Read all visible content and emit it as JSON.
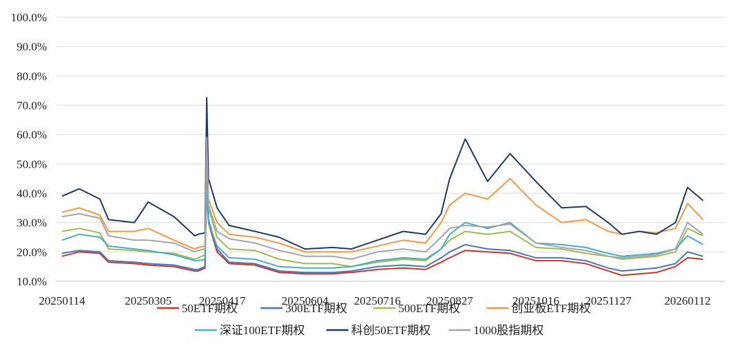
{
  "chart_data": {
    "type": "line",
    "title": "",
    "xlabel": "",
    "ylabel": "",
    "ylim": [
      0.1,
      1.0
    ],
    "y_tick_labels": [
      "10.0%",
      "20.0%",
      "30.0%",
      "40.0%",
      "50.0%",
      "60.0%",
      "70.0%",
      "80.0%",
      "90.0%",
      "100.0%"
    ],
    "x_tick_labels": [
      "20250114",
      "20250305",
      "20250417",
      "20250604",
      "20250716",
      "20250827",
      "20251016",
      "20251127",
      "20260112"
    ],
    "x_ticks": [
      "2025-01-14",
      "2025-03-05",
      "2025-04-17",
      "2025-06-04",
      "2025-07-16",
      "2025-08-27",
      "2025-10-16",
      "2025-11-27",
      "2026-01-12"
    ],
    "grid": "horizontal",
    "legend_position": "bottom",
    "series": [
      {
        "name": "50ETF期权",
        "color": "#c0392b",
        "points": [
          [
            "2025-01-14",
            0.185
          ],
          [
            "2025-01-24",
            0.2
          ],
          [
            "2025-02-05",
            0.195
          ],
          [
            "2025-02-10",
            0.165
          ],
          [
            "2025-02-25",
            0.16
          ],
          [
            "2025-03-05",
            0.155
          ],
          [
            "2025-03-20",
            0.15
          ],
          [
            "2025-04-01",
            0.135
          ],
          [
            "2025-04-03",
            0.135
          ],
          [
            "2025-04-07",
            0.145
          ],
          [
            "2025-04-08",
            0.56
          ],
          [
            "2025-04-09",
            0.3
          ],
          [
            "2025-04-14",
            0.2
          ],
          [
            "2025-04-21",
            0.16
          ],
          [
            "2025-05-06",
            0.155
          ],
          [
            "2025-05-20",
            0.13
          ],
          [
            "2025-06-04",
            0.125
          ],
          [
            "2025-06-20",
            0.125
          ],
          [
            "2025-07-01",
            0.13
          ],
          [
            "2025-07-16",
            0.14
          ],
          [
            "2025-07-31",
            0.145
          ],
          [
            "2025-08-13",
            0.14
          ],
          [
            "2025-08-22",
            0.165
          ],
          [
            "2025-08-27",
            0.18
          ],
          [
            "2025-09-05",
            0.205
          ],
          [
            "2025-09-18",
            0.2
          ],
          [
            "2025-10-01",
            0.195
          ],
          [
            "2025-10-16",
            0.17
          ],
          [
            "2025-10-31",
            0.17
          ],
          [
            "2025-11-14",
            0.16
          ],
          [
            "2025-11-27",
            0.135
          ],
          [
            "2025-12-05",
            0.12
          ],
          [
            "2025-12-15",
            0.125
          ],
          [
            "2025-12-25",
            0.13
          ],
          [
            "2026-01-05",
            0.15
          ],
          [
            "2026-01-12",
            0.18
          ],
          [
            "2026-01-21",
            0.175
          ]
        ]
      },
      {
        "name": "300ETF期权",
        "color": "#4a76b8",
        "points": [
          [
            "2025-01-14",
            0.195
          ],
          [
            "2025-01-24",
            0.205
          ],
          [
            "2025-02-05",
            0.2
          ],
          [
            "2025-02-10",
            0.17
          ],
          [
            "2025-02-25",
            0.165
          ],
          [
            "2025-03-05",
            0.16
          ],
          [
            "2025-03-20",
            0.155
          ],
          [
            "2025-04-01",
            0.14
          ],
          [
            "2025-04-03",
            0.14
          ],
          [
            "2025-04-07",
            0.15
          ],
          [
            "2025-04-08",
            0.58
          ],
          [
            "2025-04-09",
            0.31
          ],
          [
            "2025-04-14",
            0.21
          ],
          [
            "2025-04-21",
            0.165
          ],
          [
            "2025-05-06",
            0.16
          ],
          [
            "2025-05-20",
            0.135
          ],
          [
            "2025-06-04",
            0.13
          ],
          [
            "2025-06-20",
            0.13
          ],
          [
            "2025-07-01",
            0.135
          ],
          [
            "2025-07-16",
            0.15
          ],
          [
            "2025-07-31",
            0.155
          ],
          [
            "2025-08-13",
            0.15
          ],
          [
            "2025-08-22",
            0.18
          ],
          [
            "2025-08-27",
            0.2
          ],
          [
            "2025-09-05",
            0.225
          ],
          [
            "2025-09-18",
            0.21
          ],
          [
            "2025-10-01",
            0.205
          ],
          [
            "2025-10-16",
            0.18
          ],
          [
            "2025-10-31",
            0.18
          ],
          [
            "2025-11-14",
            0.17
          ],
          [
            "2025-11-27",
            0.145
          ],
          [
            "2025-12-05",
            0.135
          ],
          [
            "2025-12-15",
            0.14
          ],
          [
            "2025-12-25",
            0.145
          ],
          [
            "2026-01-05",
            0.16
          ],
          [
            "2026-01-12",
            0.2
          ],
          [
            "2026-01-21",
            0.185
          ]
        ]
      },
      {
        "name": "500ETF期权",
        "color": "#9bbb59",
        "points": [
          [
            "2025-01-14",
            0.27
          ],
          [
            "2025-01-24",
            0.28
          ],
          [
            "2025-02-05",
            0.265
          ],
          [
            "2025-02-10",
            0.21
          ],
          [
            "2025-02-25",
            0.205
          ],
          [
            "2025-03-05",
            0.2
          ],
          [
            "2025-03-20",
            0.195
          ],
          [
            "2025-04-01",
            0.175
          ],
          [
            "2025-04-03",
            0.18
          ],
          [
            "2025-04-07",
            0.19
          ],
          [
            "2025-04-08",
            0.6
          ],
          [
            "2025-04-09",
            0.35
          ],
          [
            "2025-04-14",
            0.25
          ],
          [
            "2025-04-21",
            0.21
          ],
          [
            "2025-05-06",
            0.205
          ],
          [
            "2025-05-20",
            0.175
          ],
          [
            "2025-06-04",
            0.16
          ],
          [
            "2025-06-20",
            0.16
          ],
          [
            "2025-07-01",
            0.15
          ],
          [
            "2025-07-16",
            0.165
          ],
          [
            "2025-07-31",
            0.175
          ],
          [
            "2025-08-13",
            0.17
          ],
          [
            "2025-08-22",
            0.21
          ],
          [
            "2025-08-27",
            0.24
          ],
          [
            "2025-09-05",
            0.27
          ],
          [
            "2025-09-18",
            0.26
          ],
          [
            "2025-10-01",
            0.27
          ],
          [
            "2025-10-16",
            0.215
          ],
          [
            "2025-10-31",
            0.21
          ],
          [
            "2025-11-14",
            0.195
          ],
          [
            "2025-11-27",
            0.185
          ],
          [
            "2025-12-05",
            0.175
          ],
          [
            "2025-12-15",
            0.18
          ],
          [
            "2025-12-25",
            0.185
          ],
          [
            "2026-01-05",
            0.2
          ],
          [
            "2026-01-12",
            0.28
          ],
          [
            "2026-01-21",
            0.255
          ]
        ]
      },
      {
        "name": "创业板ETF期权",
        "color": "#f79646",
        "points": [
          [
            "2025-01-14",
            0.335
          ],
          [
            "2025-01-24",
            0.35
          ],
          [
            "2025-02-05",
            0.325
          ],
          [
            "2025-02-10",
            0.27
          ],
          [
            "2025-02-25",
            0.27
          ],
          [
            "2025-03-05",
            0.28
          ],
          [
            "2025-03-20",
            0.24
          ],
          [
            "2025-04-01",
            0.21
          ],
          [
            "2025-04-03",
            0.215
          ],
          [
            "2025-04-07",
            0.22
          ],
          [
            "2025-04-08",
            0.62
          ],
          [
            "2025-04-09",
            0.38
          ],
          [
            "2025-04-14",
            0.3
          ],
          [
            "2025-04-21",
            0.26
          ],
          [
            "2025-05-06",
            0.25
          ],
          [
            "2025-05-20",
            0.23
          ],
          [
            "2025-06-04",
            0.2
          ],
          [
            "2025-06-20",
            0.2
          ],
          [
            "2025-07-01",
            0.2
          ],
          [
            "2025-07-16",
            0.22
          ],
          [
            "2025-07-31",
            0.24
          ],
          [
            "2025-08-13",
            0.23
          ],
          [
            "2025-08-22",
            0.3
          ],
          [
            "2025-08-27",
            0.36
          ],
          [
            "2025-09-05",
            0.4
          ],
          [
            "2025-09-18",
            0.38
          ],
          [
            "2025-10-01",
            0.45
          ],
          [
            "2025-10-16",
            0.36
          ],
          [
            "2025-10-31",
            0.3
          ],
          [
            "2025-11-14",
            0.31
          ],
          [
            "2025-11-27",
            0.27
          ],
          [
            "2025-12-05",
            0.26
          ],
          [
            "2025-12-15",
            0.27
          ],
          [
            "2025-12-25",
            0.265
          ],
          [
            "2026-01-05",
            0.28
          ],
          [
            "2026-01-12",
            0.365
          ],
          [
            "2026-01-21",
            0.31
          ]
        ]
      },
      {
        "name": "深证100ETF期权",
        "color": "#4bacc6",
        "points": [
          [
            "2025-01-14",
            0.24
          ],
          [
            "2025-01-24",
            0.26
          ],
          [
            "2025-02-05",
            0.25
          ],
          [
            "2025-02-10",
            0.22
          ],
          [
            "2025-02-25",
            0.21
          ],
          [
            "2025-03-05",
            0.205
          ],
          [
            "2025-03-20",
            0.19
          ],
          [
            "2025-04-01",
            0.17
          ],
          [
            "2025-04-03",
            0.17
          ],
          [
            "2025-04-07",
            0.175
          ],
          [
            "2025-04-08",
            0.4
          ],
          [
            "2025-04-09",
            0.3
          ],
          [
            "2025-04-14",
            0.22
          ],
          [
            "2025-04-21",
            0.18
          ],
          [
            "2025-05-06",
            0.175
          ],
          [
            "2025-05-20",
            0.15
          ],
          [
            "2025-06-04",
            0.145
          ],
          [
            "2025-06-20",
            0.145
          ],
          [
            "2025-07-01",
            0.15
          ],
          [
            "2025-07-16",
            0.17
          ],
          [
            "2025-07-31",
            0.18
          ],
          [
            "2025-08-13",
            0.175
          ],
          [
            "2025-08-22",
            0.21
          ],
          [
            "2025-08-27",
            0.26
          ],
          [
            "2025-09-05",
            0.3
          ],
          [
            "2025-09-18",
            0.28
          ],
          [
            "2025-10-01",
            0.3
          ],
          [
            "2025-10-16",
            0.23
          ],
          [
            "2025-10-31",
            0.225
          ],
          [
            "2025-11-14",
            0.215
          ],
          [
            "2025-11-27",
            0.195
          ],
          [
            "2025-12-05",
            0.185
          ],
          [
            "2025-12-15",
            0.19
          ],
          [
            "2025-12-25",
            0.195
          ],
          [
            "2026-01-05",
            0.21
          ],
          [
            "2026-01-12",
            0.255
          ],
          [
            "2026-01-21",
            0.225
          ]
        ]
      },
      {
        "name": "科创50ETF期权",
        "color": "#1f3864",
        "points": [
          [
            "2025-01-14",
            0.39
          ],
          [
            "2025-01-24",
            0.415
          ],
          [
            "2025-02-05",
            0.38
          ],
          [
            "2025-02-10",
            0.31
          ],
          [
            "2025-02-25",
            0.3
          ],
          [
            "2025-03-05",
            0.37
          ],
          [
            "2025-03-20",
            0.32
          ],
          [
            "2025-04-01",
            0.255
          ],
          [
            "2025-04-03",
            0.26
          ],
          [
            "2025-04-07",
            0.265
          ],
          [
            "2025-04-08",
            0.725
          ],
          [
            "2025-04-09",
            0.45
          ],
          [
            "2025-04-14",
            0.35
          ],
          [
            "2025-04-21",
            0.29
          ],
          [
            "2025-05-06",
            0.27
          ],
          [
            "2025-05-20",
            0.25
          ],
          [
            "2025-06-04",
            0.21
          ],
          [
            "2025-06-20",
            0.215
          ],
          [
            "2025-07-01",
            0.21
          ],
          [
            "2025-07-16",
            0.24
          ],
          [
            "2025-07-31",
            0.27
          ],
          [
            "2025-08-13",
            0.26
          ],
          [
            "2025-08-22",
            0.33
          ],
          [
            "2025-08-27",
            0.45
          ],
          [
            "2025-09-05",
            0.585
          ],
          [
            "2025-09-18",
            0.44
          ],
          [
            "2025-10-01",
            0.535
          ],
          [
            "2025-10-16",
            0.44
          ],
          [
            "2025-10-31",
            0.35
          ],
          [
            "2025-11-14",
            0.355
          ],
          [
            "2025-11-27",
            0.3
          ],
          [
            "2025-12-05",
            0.26
          ],
          [
            "2025-12-15",
            0.27
          ],
          [
            "2025-12-25",
            0.26
          ],
          [
            "2026-01-05",
            0.3
          ],
          [
            "2026-01-12",
            0.42
          ],
          [
            "2026-01-21",
            0.375
          ]
        ]
      },
      {
        "name": "1000股指期权",
        "color": "#a5a5a5",
        "points": [
          [
            "2025-01-14",
            0.32
          ],
          [
            "2025-01-24",
            0.33
          ],
          [
            "2025-02-05",
            0.315
          ],
          [
            "2025-02-10",
            0.255
          ],
          [
            "2025-02-25",
            0.24
          ],
          [
            "2025-03-05",
            0.24
          ],
          [
            "2025-03-20",
            0.23
          ],
          [
            "2025-04-01",
            0.2
          ],
          [
            "2025-04-03",
            0.205
          ],
          [
            "2025-04-07",
            0.21
          ],
          [
            "2025-04-08",
            0.59
          ],
          [
            "2025-04-09",
            0.36
          ],
          [
            "2025-04-14",
            0.27
          ],
          [
            "2025-04-21",
            0.245
          ],
          [
            "2025-05-06",
            0.23
          ],
          [
            "2025-05-20",
            0.205
          ],
          [
            "2025-06-04",
            0.185
          ],
          [
            "2025-06-20",
            0.185
          ],
          [
            "2025-07-01",
            0.175
          ],
          [
            "2025-07-16",
            0.2
          ],
          [
            "2025-07-31",
            0.21
          ],
          [
            "2025-08-13",
            0.2
          ],
          [
            "2025-08-22",
            0.25
          ],
          [
            "2025-08-27",
            0.28
          ],
          [
            "2025-09-05",
            0.29
          ],
          [
            "2025-09-18",
            0.285
          ],
          [
            "2025-10-01",
            0.295
          ],
          [
            "2025-10-16",
            0.23
          ],
          [
            "2025-10-31",
            0.215
          ],
          [
            "2025-11-14",
            0.205
          ],
          [
            "2025-11-27",
            0.185
          ],
          [
            "2025-12-05",
            0.18
          ],
          [
            "2025-12-15",
            0.185
          ],
          [
            "2025-12-25",
            0.19
          ],
          [
            "2026-01-05",
            0.21
          ],
          [
            "2026-01-12",
            0.3
          ],
          [
            "2026-01-21",
            0.26
          ]
        ]
      }
    ]
  }
}
